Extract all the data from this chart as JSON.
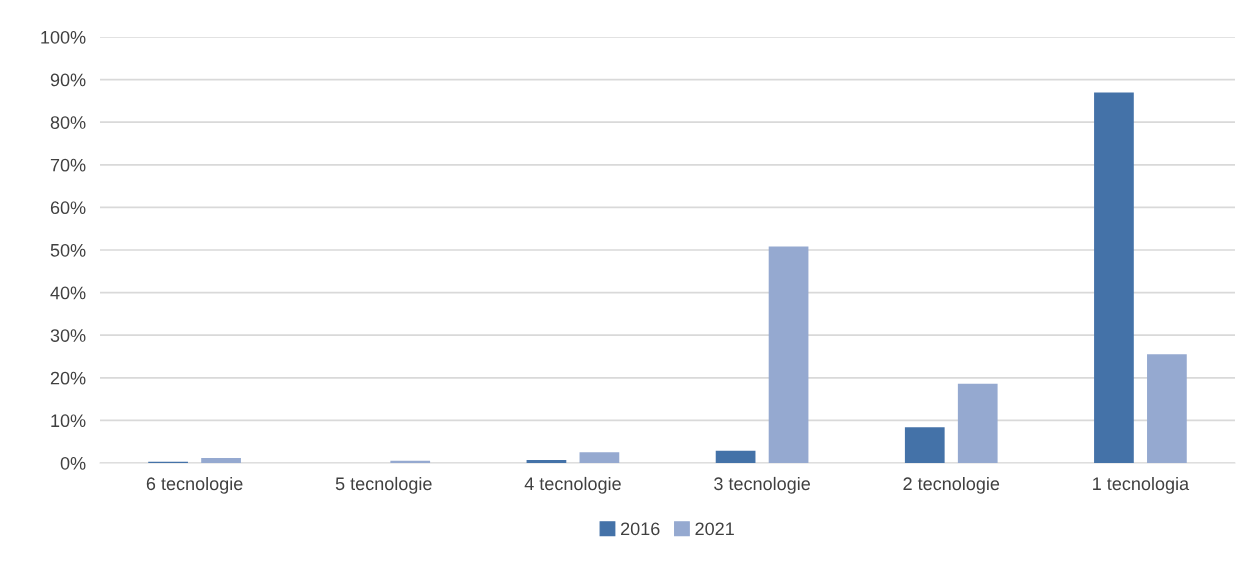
{
  "chart_data": {
    "type": "bar",
    "categories": [
      "6 tecnologie",
      "5 tecnologie",
      "4 tecnologie",
      "3 tecnologie",
      "2 tecnologie",
      "1 tecnologia"
    ],
    "series": [
      {
        "name": "2016",
        "color": "#4472a8",
        "values": [
          0.3,
          0,
          0.7,
          2.9,
          8.4,
          87
        ]
      },
      {
        "name": "2021",
        "color": "#95a9d0",
        "values": [
          1.2,
          0.5,
          2.5,
          50.8,
          18.6,
          25.5
        ]
      }
    ],
    "ylim": [
      0,
      100
    ],
    "yticks": [
      {
        "value": 0,
        "label": "0%"
      },
      {
        "value": 10,
        "label": "10%"
      },
      {
        "value": 20,
        "label": "20%"
      },
      {
        "value": 30,
        "label": "30%"
      },
      {
        "value": 40,
        "label": "40%"
      },
      {
        "value": 50,
        "label": "50%"
      },
      {
        "value": 60,
        "label": "60%"
      },
      {
        "value": 70,
        "label": "70%"
      },
      {
        "value": 80,
        "label": "80%"
      },
      {
        "value": 90,
        "label": "90%"
      },
      {
        "value": 100,
        "label": "100%"
      }
    ],
    "grid": "y",
    "legend": "bottom"
  }
}
